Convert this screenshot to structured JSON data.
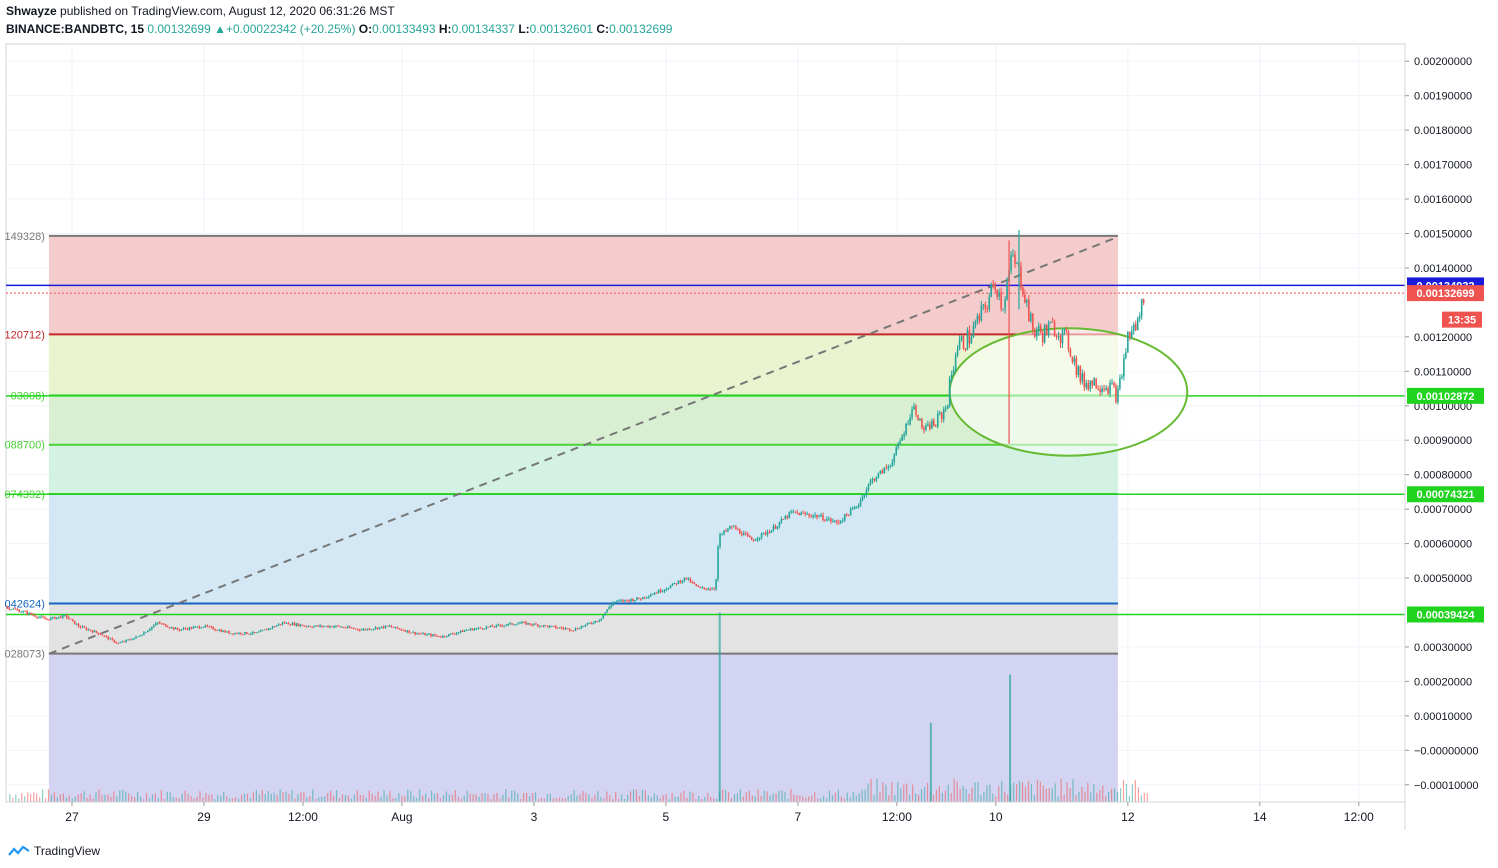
{
  "header": {
    "author": "Shwayze",
    "published_text": "published on TradingView.com, August 12, 2020 06:31:26 MST",
    "symbol": "BINANCE:BANDBTC, 15",
    "last": "0.00132699",
    "change": "+0.00022342 (+20.25%)",
    "open_label": "O:",
    "open": "0.00133493",
    "high_label": "H:",
    "high": "0.00134337",
    "low_label": "L:",
    "low": "0.00132601",
    "close_label": "C:",
    "close": "0.00132699",
    "up_arrow": "▲"
  },
  "footer": {
    "brand": "TradingView",
    "logo_icon": "tradingview-logo-icon"
  },
  "colors": {
    "up": "#26a69a",
    "down": "#ef5350",
    "grid": "#f0f3fa",
    "fib_top": "#f4cccc",
    "fib_red_zone": "#f4cccc",
    "fib_yellow_zone": "#eaf3cf",
    "fib_green_zone": "#d9efd2",
    "fib_mint_zone": "#d3f2e4",
    "fib_blue_zone": "#d3e8f4",
    "fib_gray_zone": "#e3e3e3",
    "fib_purple_zone": "#d3d3f2",
    "level_green": "#4cd137",
    "level_red": "#c62828",
    "level_blue": "#1565c0",
    "level_gray": "#787878",
    "ellipse": "#66bb33"
  },
  "chart_data": {
    "type": "candlestick",
    "title": "BINANCE:BANDBTC, 15",
    "price_axis": {
      "position": "right",
      "ylim": [
        -0.00015,
        0.00205
      ],
      "ticks": [
        0.002,
        0.0019,
        0.0018,
        0.0017,
        0.0016,
        0.0015,
        0.0014,
        0.0012,
        0.0011,
        0.001,
        0.0009,
        0.0008,
        0.0007,
        0.0006,
        0.0005,
        0.0003,
        0.0002,
        0.0001,
        -0.0,
        -0.0001
      ],
      "tick_labels": [
        "0.00200000",
        "0.00190000",
        "0.00180000",
        "0.00170000",
        "0.00160000",
        "0.00150000",
        "0.00140000",
        "0.00120000",
        "0.00110000",
        "0.00100000",
        "0.00090000",
        "0.00080000",
        "0.00070000",
        "0.00060000",
        "0.00050000",
        "0.00030000",
        "0.00020000",
        "0.00010000",
        "−0.00000000",
        "−0.00010000"
      ]
    },
    "time_axis": {
      "labels": [
        "27",
        "29",
        "12:00",
        "Aug",
        "3",
        "5",
        "7",
        "12:00",
        "10",
        "12",
        "14",
        "12:00"
      ],
      "positions_day": [
        1,
        3,
        4.5,
        6,
        8,
        10,
        12,
        13.5,
        15,
        17,
        19,
        20.5
      ],
      "xlim_day": [
        0,
        21.2
      ]
    },
    "price_markers": [
      {
        "label": "0.00134932",
        "value": 0.00134932,
        "color": "#1a1adb"
      },
      {
        "label": "0.00132699",
        "value": 0.00132699,
        "color": "#ef5350"
      },
      {
        "label": "13:35",
        "value": 0.00125,
        "color": "#ef5350"
      },
      {
        "label": "0.00102872",
        "value": 0.00102872,
        "color": "#1fd31f"
      },
      {
        "label": "0.00074321",
        "value": 0.00074321,
        "color": "#1fd31f"
      },
      {
        "label": "0.00039424",
        "value": 0.00039424,
        "color": "#1fd31f"
      }
    ],
    "fib_retracement": {
      "start_day": 0.65,
      "end_day": 16.85,
      "levels": [
        {
          "label": "149328)",
          "value": 0.00149328,
          "color": "#787878",
          "zone": "#f4cccc"
        },
        {
          "label": "120712)",
          "value": 0.00120712,
          "color": "#c62828",
          "zone": "#eaf3cf"
        },
        {
          "label": "03008)",
          "value": 0.00103008,
          "color": "#4cd137",
          "zone": "#d9efd2"
        },
        {
          "label": "088700)",
          "value": 0.000887,
          "color": "#4cd137",
          "zone": "#d3f2e4"
        },
        {
          "label": "074392)",
          "value": 0.00074392,
          "color": "#4cd137",
          "zone": "#d3e8f4"
        },
        {
          "label": "042624)",
          "value": 0.00042624,
          "color": "#1565c0",
          "zone": "#e3e3e3"
        },
        {
          "label": "028073)",
          "value": 0.00028073,
          "color": "#787878",
          "zone": "#d3d3f2"
        }
      ]
    },
    "horizontal_lines": [
      {
        "value": 0.00102872,
        "color": "#1fd31f"
      },
      {
        "value": 0.00074321,
        "color": "#1fd31f"
      },
      {
        "value": 0.00039424,
        "color": "#1fd31f"
      },
      {
        "value": 0.00134932,
        "color": "#1a1adb"
      },
      {
        "value": 0.00132699,
        "color": "#ef5350",
        "dotted": true
      }
    ],
    "trendline": {
      "from": [
        0.65,
        0.00028
      ],
      "to": [
        16.85,
        0.00149
      ],
      "dashed": true
    },
    "ellipse": {
      "center_day": 16.1,
      "center_value": 0.00104,
      "rx_day": 1.8,
      "ry_value": 0.000185
    },
    "price_path": [
      [
        0.0,
        0.000415
      ],
      [
        0.3,
        0.0004
      ],
      [
        0.6,
        0.00038
      ],
      [
        0.9,
        0.00039
      ],
      [
        1.1,
        0.00036
      ],
      [
        1.4,
        0.00034
      ],
      [
        1.7,
        0.00031
      ],
      [
        2.0,
        0.00033
      ],
      [
        2.3,
        0.00037
      ],
      [
        2.6,
        0.00035
      ],
      [
        3.0,
        0.00036
      ],
      [
        3.4,
        0.00034
      ],
      [
        3.8,
        0.00034
      ],
      [
        4.2,
        0.00037
      ],
      [
        4.6,
        0.00036
      ],
      [
        5.0,
        0.00036
      ],
      [
        5.4,
        0.00035
      ],
      [
        5.8,
        0.00036
      ],
      [
        6.2,
        0.00034
      ],
      [
        6.6,
        0.00033
      ],
      [
        7.0,
        0.00035
      ],
      [
        7.4,
        0.00036
      ],
      [
        7.8,
        0.00037
      ],
      [
        8.2,
        0.00036
      ],
      [
        8.6,
        0.00035
      ],
      [
        9.0,
        0.00038
      ],
      [
        9.2,
        0.00043
      ],
      [
        9.6,
        0.00044
      ],
      [
        10.0,
        0.00047
      ],
      [
        10.3,
        0.0005
      ],
      [
        10.5,
        0.00047
      ],
      [
        10.75,
        0.00047
      ],
      [
        10.8,
        0.00062
      ],
      [
        11.0,
        0.00065
      ],
      [
        11.3,
        0.00061
      ],
      [
        11.6,
        0.00064
      ],
      [
        11.9,
        0.00069
      ],
      [
        12.3,
        0.00068
      ],
      [
        12.6,
        0.00066
      ],
      [
        12.9,
        0.00071
      ],
      [
        13.1,
        0.00078
      ],
      [
        13.4,
        0.00083
      ],
      [
        13.6,
        0.00092
      ],
      [
        13.75,
        0.001
      ],
      [
        13.9,
        0.00093
      ],
      [
        14.1,
        0.00095
      ],
      [
        14.25,
        0.001
      ],
      [
        14.4,
        0.00117
      ],
      [
        14.6,
        0.0012
      ],
      [
        14.8,
        0.00127
      ],
      [
        15.0,
        0.00136
      ],
      [
        15.1,
        0.00129
      ],
      [
        15.25,
        0.00143
      ],
      [
        15.4,
        0.00136
      ],
      [
        15.55,
        0.00122
      ],
      [
        15.7,
        0.00121
      ],
      [
        15.9,
        0.00123
      ],
      [
        16.1,
        0.00118
      ],
      [
        16.3,
        0.00107
      ],
      [
        16.5,
        0.00107
      ],
      [
        16.7,
        0.00106
      ],
      [
        16.85,
        0.00103
      ],
      [
        17.0,
        0.0012
      ],
      [
        17.15,
        0.00124
      ],
      [
        17.25,
        0.00133
      ]
    ],
    "volume_spikes": [
      {
        "day": 10.8,
        "value": 0.0004
      },
      {
        "day": 15.2,
        "value": 0.00022
      },
      {
        "day": 14.0,
        "value": 8e-05
      }
    ]
  }
}
